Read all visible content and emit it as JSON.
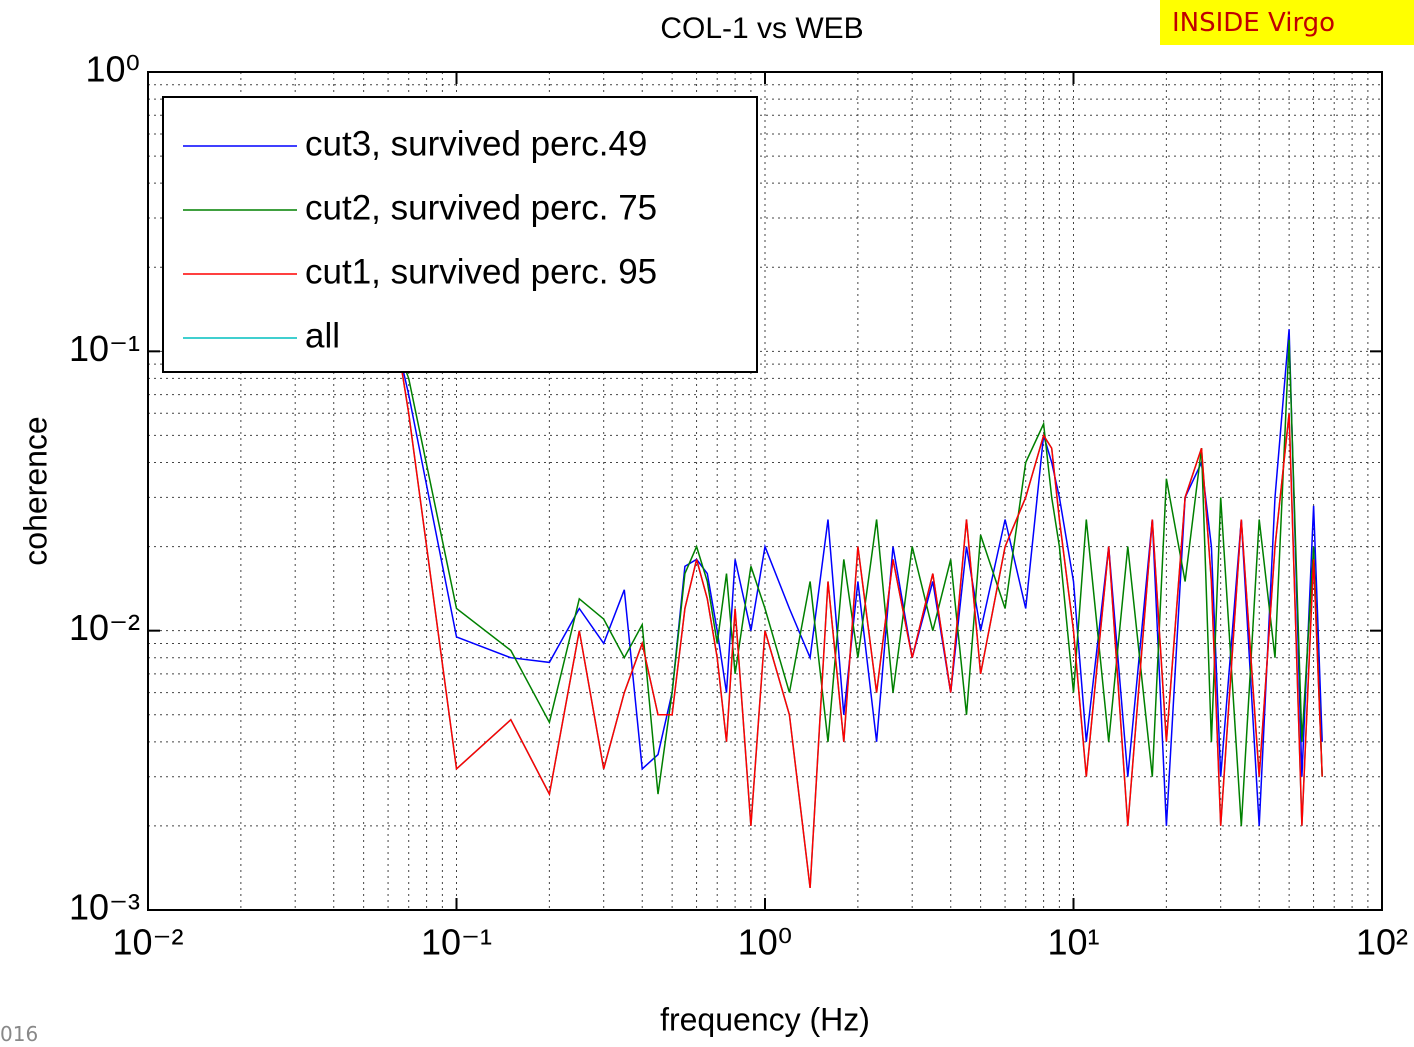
{
  "chart_data": {
    "type": "line",
    "title": "COL-1 vs WEB",
    "x_label": "frequency (Hz)",
    "y_label": "coherence",
    "note": "INSIDE Virgo",
    "footer": "016",
    "log_x": true,
    "log_y": true,
    "grid": true,
    "minor_grid": true,
    "legend": "upper left",
    "xlim": [
      0.01,
      100
    ],
    "ylim": [
      0.001,
      1
    ],
    "xticks": [
      {
        "value": 0.01,
        "label": "10⁻²"
      },
      {
        "value": 0.1,
        "label": "10⁻¹"
      },
      {
        "value": 1,
        "label": "10⁰"
      },
      {
        "value": 10,
        "label": "10¹"
      },
      {
        "value": 100,
        "label": "10²"
      }
    ],
    "yticks": [
      {
        "value": 0.001,
        "label": "10⁻³"
      },
      {
        "value": 0.01,
        "label": "10⁻²"
      },
      {
        "value": 0.1,
        "label": "10⁻¹"
      },
      {
        "value": 1,
        "label": "10⁰"
      }
    ],
    "x": [
      0.065,
      0.07,
      0.1,
      0.15,
      0.2,
      0.25,
      0.3,
      0.35,
      0.4,
      0.45,
      0.5,
      0.55,
      0.6,
      0.65,
      0.7,
      0.75,
      0.8,
      0.9,
      1.0,
      1.2,
      1.4,
      1.6,
      1.8,
      2.0,
      2.3,
      2.6,
      3.0,
      3.5,
      4,
      4.5,
      5,
      6,
      7,
      8,
      8.5,
      9,
      10,
      11,
      13,
      15,
      18,
      20,
      23,
      26,
      28,
      30,
      35,
      40,
      45,
      50,
      55,
      60,
      64
    ],
    "series": [
      {
        "name": "cut3, survived perc.49",
        "color": "#0000ff",
        "values": [
          0.1,
          0.07,
          0.0095,
          0.008,
          0.0077,
          0.012,
          0.009,
          0.014,
          0.0032,
          0.0036,
          0.006,
          0.017,
          0.018,
          0.016,
          0.01,
          0.006,
          0.018,
          0.01,
          0.02,
          0.012,
          0.008,
          0.025,
          0.005,
          0.015,
          0.004,
          0.02,
          0.008,
          0.015,
          0.006,
          0.02,
          0.01,
          0.025,
          0.012,
          0.05,
          0.04,
          0.03,
          0.015,
          0.004,
          0.02,
          0.003,
          0.025,
          0.002,
          0.03,
          0.04,
          0.02,
          0.003,
          0.025,
          0.002,
          0.03,
          0.12,
          0.003,
          0.028,
          0.004
        ]
      },
      {
        "name": "cut2, survived perc. 75",
        "color": "#008000",
        "values": [
          0.1,
          0.08,
          0.012,
          0.0085,
          0.0047,
          0.013,
          0.011,
          0.008,
          0.0105,
          0.0026,
          0.006,
          0.016,
          0.02,
          0.015,
          0.009,
          0.016,
          0.007,
          0.017,
          0.012,
          0.006,
          0.015,
          0.004,
          0.018,
          0.008,
          0.025,
          0.006,
          0.02,
          0.01,
          0.018,
          0.005,
          0.022,
          0.012,
          0.04,
          0.055,
          0.03,
          0.02,
          0.006,
          0.025,
          0.004,
          0.02,
          0.003,
          0.035,
          0.015,
          0.045,
          0.004,
          0.03,
          0.002,
          0.025,
          0.008,
          0.11,
          0.004,
          0.02,
          0.003
        ]
      },
      {
        "name": "cut1, survived perc. 95",
        "color": "#ff0000",
        "values": [
          0.1,
          0.06,
          0.0032,
          0.0048,
          0.0026,
          0.01,
          0.0032,
          0.006,
          0.009,
          0.005,
          0.005,
          0.012,
          0.018,
          0.013,
          0.008,
          0.004,
          0.012,
          0.002,
          0.01,
          0.005,
          0.0012,
          0.015,
          0.004,
          0.02,
          0.006,
          0.018,
          0.008,
          0.016,
          0.006,
          0.025,
          0.007,
          0.02,
          0.03,
          0.05,
          0.045,
          0.025,
          0.01,
          0.003,
          0.02,
          0.002,
          0.025,
          0.004,
          0.03,
          0.045,
          0.015,
          0.002,
          0.025,
          0.003,
          0.02,
          0.06,
          0.002,
          0.018,
          0.003
        ]
      },
      {
        "name": "all",
        "color": "#00bfbf",
        "values": [
          0.1,
          0.06,
          0.0032,
          0.0048,
          0.0026,
          0.01,
          0.0032,
          0.006,
          0.009,
          0.005,
          0.005,
          0.012,
          0.018,
          0.013,
          0.008,
          0.004,
          0.012,
          0.002,
          0.01,
          0.005,
          0.0012,
          0.015,
          0.004,
          0.02,
          0.006,
          0.018,
          0.008,
          0.016,
          0.006,
          0.025,
          0.007,
          0.02,
          0.03,
          0.05,
          0.045,
          0.025,
          0.01,
          0.003,
          0.02,
          0.002,
          0.025,
          0.004,
          0.03,
          0.045,
          0.015,
          0.002,
          0.025,
          0.003,
          0.02,
          0.06,
          0.002,
          0.018,
          0.003
        ]
      }
    ]
  }
}
